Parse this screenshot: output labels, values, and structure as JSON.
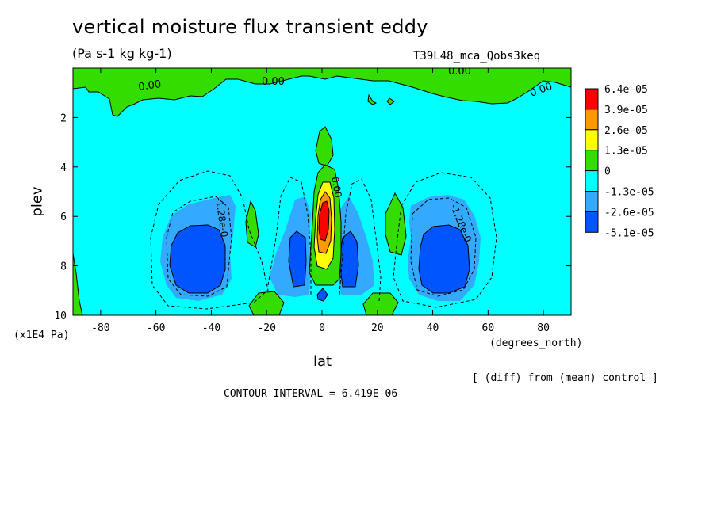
{
  "chart_data": {
    "type": "heatmap",
    "title": "vertical moisture flux transient eddy",
    "subtitle": "(Pa s-1 kg kg-1)",
    "run_name": "T39L48_mca_Qobs3keq",
    "xlabel": "lat",
    "ylabel": "plev",
    "x_units": "(degrees_north)",
    "y_units": "(x1E4 Pa)",
    "xlim": [
      -90,
      90
    ],
    "ylim": [
      10,
      0
    ],
    "x_ticks": [
      "-80",
      "-60",
      "-40",
      "-20",
      "0",
      "20",
      "40",
      "60",
      "80"
    ],
    "y_ticks": [
      "2",
      "4",
      "6",
      "8",
      "10"
    ],
    "colorbar": {
      "levels": [
        "6.4e-05",
        "3.9e-05",
        "2.6e-05",
        "1.3e-05",
        "0",
        "-1.3e-05",
        "-2.6e-05",
        "-5.1e-05"
      ],
      "colors": [
        "#ff0000",
        "#ff9900",
        "#ffff00",
        "#33dd00",
        "#00ffff",
        "#33aaff",
        "#0055ff"
      ]
    },
    "contour_labels": [
      "0.00",
      "0.00",
      "0.00",
      "0.00",
      "-1.28e-0",
      "-1.28e-0",
      "0.00"
    ],
    "features": [
      {
        "name": "tropical upward maximum",
        "lat": 0,
        "plev": 6.3,
        "value": 6.4e-05
      },
      {
        "name": "southern subtropical minimum",
        "lat": -40,
        "plev": 8,
        "value": -5.1e-05
      },
      {
        "name": "northern subtropical minimum",
        "lat": 40,
        "plev": 7.8,
        "value": -5.1e-05
      },
      {
        "name": "near-equator minimum south",
        "lat": -8,
        "plev": 8,
        "value": -5.1e-05
      },
      {
        "name": "near-equator minimum north",
        "lat": 8,
        "plev": 8,
        "value": -5.1e-05
      }
    ],
    "contour_interval_text": "CONTOUR INTERVAL = 6.419E-06",
    "note": "[ (diff) from (mean) control ]"
  }
}
